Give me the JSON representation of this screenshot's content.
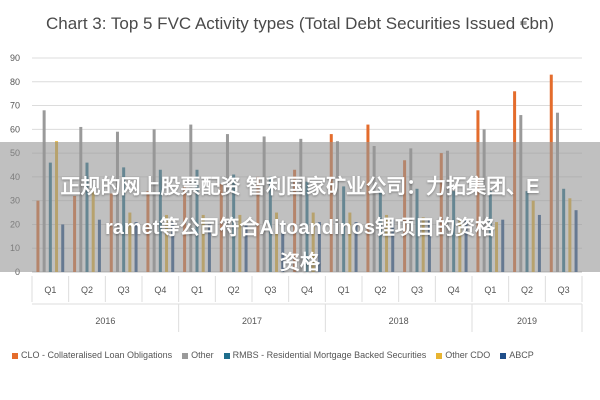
{
  "chart_data": {
    "type": "bar",
    "title": "Chart 3: Top 5 FVC Activity types (Total Debt Securities Issued €bn)",
    "ylim": [
      0,
      90
    ],
    "yticks": [
      0,
      10,
      20,
      30,
      40,
      50,
      60,
      70,
      80,
      90
    ],
    "grid": true,
    "legend_position": "bottom",
    "categories": [
      "Q1",
      "Q2",
      "Q3",
      "Q4",
      "Q1",
      "Q2",
      "Q3",
      "Q4",
      "Q1",
      "Q2",
      "Q3",
      "Q4",
      "Q1",
      "Q2",
      "Q3"
    ],
    "years": [
      {
        "label": "2016",
        "start": 0,
        "end": 3
      },
      {
        "label": "2017",
        "start": 4,
        "end": 7
      },
      {
        "label": "2018",
        "start": 8,
        "end": 11
      },
      {
        "label": "2019",
        "start": 12,
        "end": 14
      }
    ],
    "series": [
      {
        "name": "CLO - Collateralised Loan Obligations",
        "color": "#e46c2c",
        "values": [
          30,
          32,
          33,
          34,
          36,
          37,
          40,
          43,
          58,
          62,
          47,
          50,
          68,
          76,
          83
        ]
      },
      {
        "name": "Other",
        "color": "#9a9a9a",
        "values": [
          68,
          61,
          59,
          60,
          62,
          58,
          57,
          56,
          55,
          53,
          52,
          51,
          60,
          66,
          67
        ]
      },
      {
        "name": "RMBS - Residential Mortgage Backed Securities",
        "color": "#1e6e8c",
        "values": [
          46,
          46,
          44,
          43,
          43,
          41,
          40,
          38,
          36,
          35,
          35,
          34,
          34,
          34,
          35
        ]
      },
      {
        "name": "Other CDO",
        "color": "#e8b431",
        "values": [
          55,
          35,
          25,
          24,
          24,
          24,
          25,
          25,
          25,
          24,
          23,
          22,
          21,
          30,
          31
        ]
      },
      {
        "name": "ABCP",
        "color": "#1f4e8a",
        "values": [
          20,
          22,
          21,
          21,
          20,
          20,
          21,
          21,
          21,
          22,
          22,
          22,
          22,
          24,
          26
        ]
      }
    ]
  },
  "overlay": {
    "line1": "正规的网上股票配资 智利国家矿业公司：力拓集团、E",
    "line2": "ramet等公司符合Altoandinos锂项目的资格",
    "line3": "资格"
  }
}
